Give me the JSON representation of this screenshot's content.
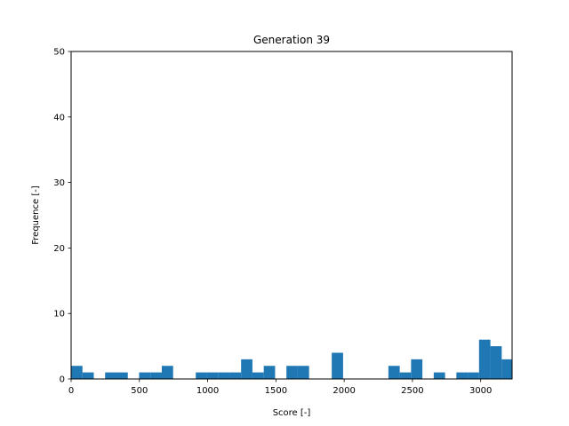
{
  "chart_data": {
    "type": "bar",
    "title": "Generation 39",
    "xlabel": "Score [-]",
    "ylabel": "Frequence [-]",
    "xlim": [
      0,
      3230
    ],
    "ylim": [
      0,
      50
    ],
    "xticks": [
      0,
      500,
      1000,
      1500,
      2000,
      2500,
      3000
    ],
    "yticks": [
      0,
      10,
      20,
      30,
      40,
      50
    ],
    "grid": false,
    "color": "#1f77b4",
    "bin_width": 83,
    "bins": [
      {
        "x0": 0,
        "x1": 83,
        "value": 2
      },
      {
        "x0": 83,
        "x1": 166,
        "value": 1
      },
      {
        "x0": 249,
        "x1": 332,
        "value": 1
      },
      {
        "x0": 332,
        "x1": 415,
        "value": 1
      },
      {
        "x0": 498,
        "x1": 581,
        "value": 1
      },
      {
        "x0": 581,
        "x1": 664,
        "value": 1
      },
      {
        "x0": 664,
        "x1": 747,
        "value": 2
      },
      {
        "x0": 913,
        "x1": 996,
        "value": 1
      },
      {
        "x0": 996,
        "x1": 1079,
        "value": 1
      },
      {
        "x0": 1079,
        "x1": 1162,
        "value": 1
      },
      {
        "x0": 1162,
        "x1": 1245,
        "value": 1
      },
      {
        "x0": 1245,
        "x1": 1328,
        "value": 3
      },
      {
        "x0": 1328,
        "x1": 1411,
        "value": 1
      },
      {
        "x0": 1411,
        "x1": 1494,
        "value": 2
      },
      {
        "x0": 1577,
        "x1": 1660,
        "value": 2
      },
      {
        "x0": 1660,
        "x1": 1743,
        "value": 2
      },
      {
        "x0": 1909,
        "x1": 1992,
        "value": 4
      },
      {
        "x0": 2324,
        "x1": 2407,
        "value": 2
      },
      {
        "x0": 2407,
        "x1": 2490,
        "value": 1
      },
      {
        "x0": 2490,
        "x1": 2573,
        "value": 3
      },
      {
        "x0": 2656,
        "x1": 2739,
        "value": 1
      },
      {
        "x0": 2822,
        "x1": 2905,
        "value": 1
      },
      {
        "x0": 2905,
        "x1": 2988,
        "value": 1
      },
      {
        "x0": 2988,
        "x1": 3071,
        "value": 6
      },
      {
        "x0": 3071,
        "x1": 3154,
        "value": 5
      },
      {
        "x0": 3154,
        "x1": 3230,
        "value": 3
      }
    ]
  }
}
